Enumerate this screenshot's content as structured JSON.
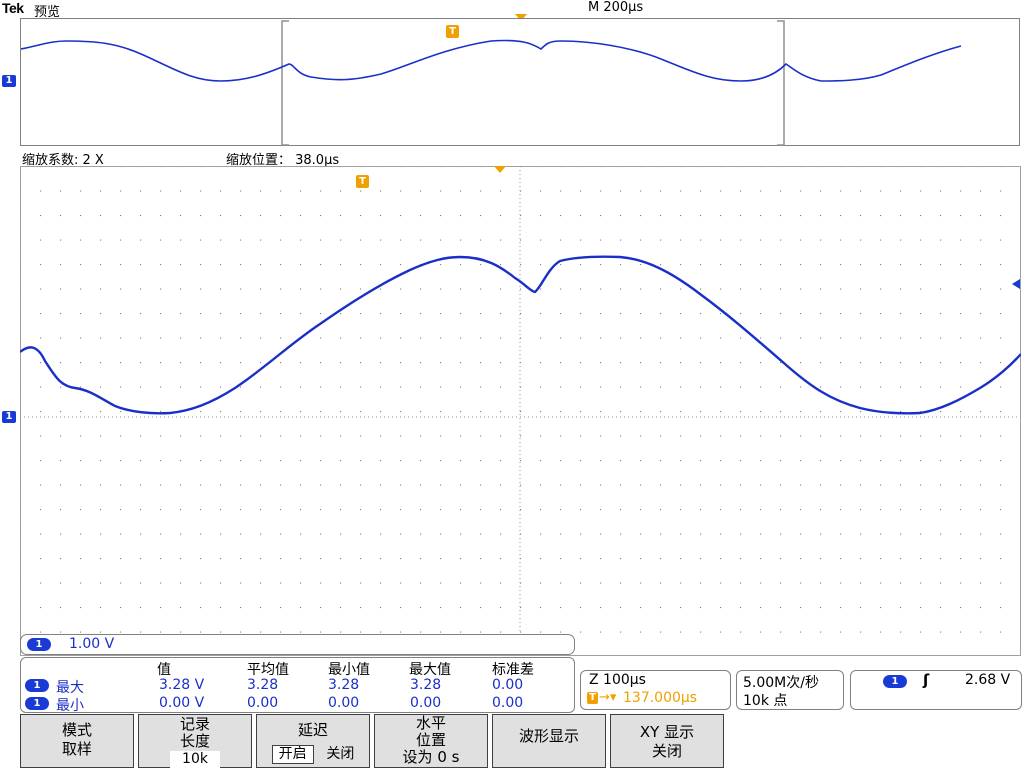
{
  "header": {
    "brand": "Tek",
    "mode": "预览",
    "timebase": "M 200µs"
  },
  "zoom": {
    "factor_label": "缩放系数: 2 X",
    "position_label": "缩放位置： 38.0µs"
  },
  "channel": {
    "id": "1",
    "scale": "1.00 V",
    "color": "#1a2fc8"
  },
  "trigger_color": "#f0a000",
  "trigger_marker": "T",
  "measurements": {
    "headers": [
      "值",
      "平均值",
      "最小值",
      "最大值",
      "标准差"
    ],
    "rows": [
      {
        "label": "最大",
        "values": [
          "3.28 V",
          "3.28",
          "3.28",
          "3.28",
          "0.00"
        ]
      },
      {
        "label": "最小",
        "values": [
          "0.00 V",
          "0.00",
          "0.00",
          "0.00",
          "0.00"
        ]
      }
    ]
  },
  "horizontal": {
    "zoom_scale": "Z 100µs",
    "trigger_position": "137.000µs"
  },
  "acquisition": {
    "rate": "5.00M次/秒",
    "points": "10k 点"
  },
  "trigger": {
    "channel": "1",
    "slope": "ʃ",
    "level": "2.68 V"
  },
  "menu": {
    "mode": {
      "line1": "模式",
      "line2": "取样"
    },
    "record": {
      "line1": "记录",
      "line2": "长度",
      "value": "10k"
    },
    "delay": {
      "title": "延迟",
      "on": "开启",
      "off": "关闭"
    },
    "horizontal_pos": {
      "line1": "水平",
      "line2": "位置",
      "line3": "设为 0 s"
    },
    "waveform_display": {
      "label": "波形显示"
    },
    "xy_display": {
      "line1": "XY 显示",
      "line2": "关闭"
    }
  }
}
